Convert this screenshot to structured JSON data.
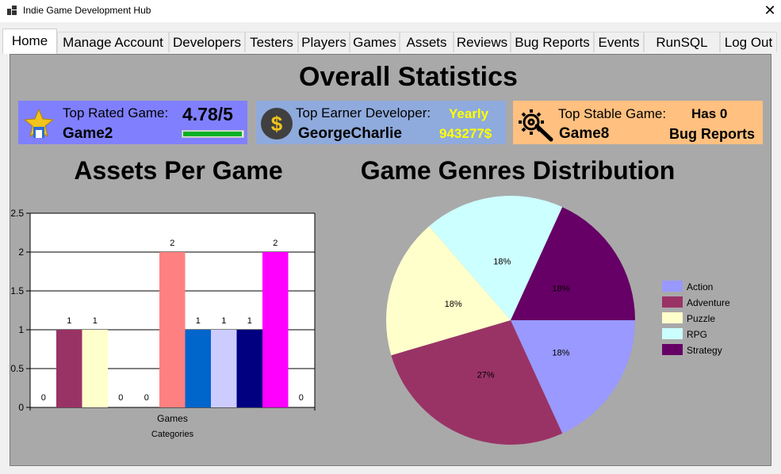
{
  "window": {
    "title": "Indie Game Development Hub"
  },
  "tabs": [
    "Home",
    "Manage Account",
    "Developers",
    "Testers",
    "Players",
    "Games",
    "Assets",
    "Reviews",
    "Bug Reports",
    "Events",
    "RunSQL",
    "Log Out"
  ],
  "header": {
    "title": "Overall Statistics"
  },
  "cards": {
    "top_rated": {
      "label": "Top Rated Game:",
      "rating": "4.78/5",
      "name": "Game2",
      "progress": 0.956,
      "color": "#8080ff",
      "icon": "star-trophy-icon"
    },
    "top_earner": {
      "label": "Top Earner Developer:",
      "period": "Yearly",
      "name": "GeorgeCharlie",
      "amount": "943277$",
      "color": "#8faadc",
      "icon": "dollar-coin-icon"
    },
    "top_stable": {
      "label": "Top Stable Game:",
      "has": "Has 0",
      "name": "Game8",
      "suffix": "Bug Reports",
      "color": "#ffc080",
      "icon": "gear-wrench-icon"
    }
  },
  "section_titles": {
    "assets": "Assets Per Game",
    "genres": "Game Genres Distribution"
  },
  "chart_data": [
    {
      "type": "bar",
      "title": "Assets Per Game",
      "xlabel": "Categories",
      "categories": [
        "Games"
      ],
      "ylim": [
        0,
        2.5
      ],
      "yticks": [
        "0",
        "0.5",
        "1",
        "1.5",
        "2",
        "2.5"
      ],
      "grid": true,
      "series": [
        {
          "value": 0,
          "label": "0",
          "color": "#4472c4"
        },
        {
          "value": 1,
          "label": "1",
          "color": "#993366"
        },
        {
          "value": 1,
          "label": "1",
          "color": "#ffffcc"
        },
        {
          "value": 0,
          "label": "0",
          "color": "#ccffff"
        },
        {
          "value": 0,
          "label": "0",
          "color": "#660066"
        },
        {
          "value": 2,
          "label": "2",
          "color": "#ff8080"
        },
        {
          "value": 1,
          "label": "1",
          "color": "#0066cc"
        },
        {
          "value": 1,
          "label": "1",
          "color": "#ccccff"
        },
        {
          "value": 1,
          "label": "1",
          "color": "#000080"
        },
        {
          "value": 2,
          "label": "2",
          "color": "#ff00ff"
        },
        {
          "value": 0,
          "label": "0",
          "color": "#ffff00"
        }
      ]
    },
    {
      "type": "pie",
      "title": "Game Genres Distribution",
      "legend_position": "right",
      "slices": [
        {
          "name": "Action",
          "value": 18,
          "label": "18%",
          "color": "#9999ff"
        },
        {
          "name": "Adventure",
          "value": 27,
          "label": "27%",
          "color": "#993366"
        },
        {
          "name": "Puzzle",
          "value": 18,
          "label": "18%",
          "color": "#ffffcc"
        },
        {
          "name": "RPG",
          "value": 18,
          "label": "18%",
          "color": "#ccffff"
        },
        {
          "name": "Strategy",
          "value": 18,
          "label": "18%",
          "color": "#660066"
        }
      ]
    }
  ]
}
